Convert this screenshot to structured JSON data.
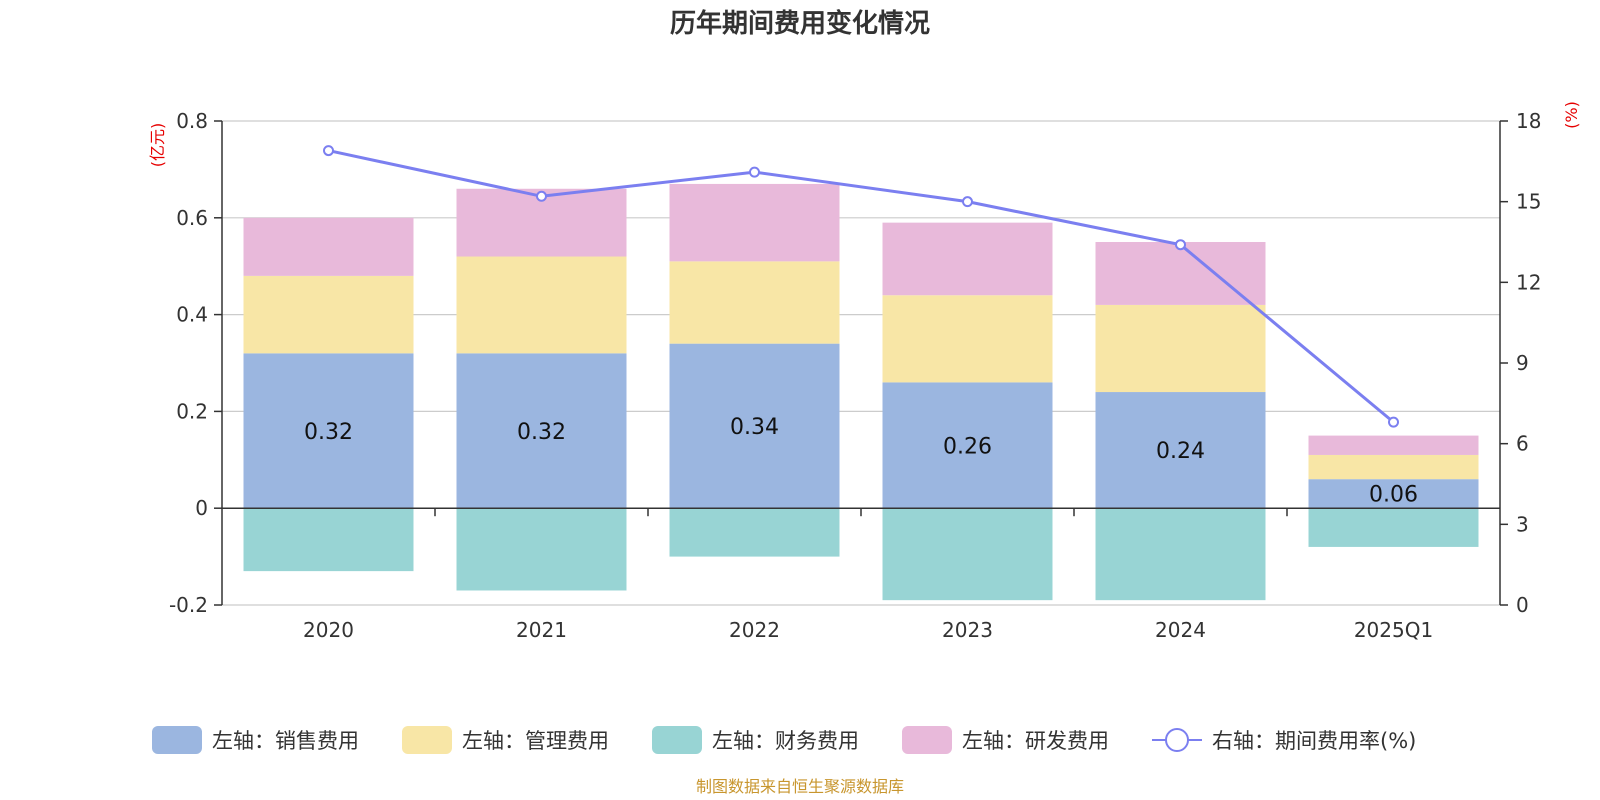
{
  "chart_data": {
    "type": "bar",
    "title": "历年期间费用变化情况",
    "categories": [
      "2020",
      "2021",
      "2022",
      "2023",
      "2024",
      "2025Q1"
    ],
    "left_axis": {
      "unit": "(亿元)",
      "range": [
        -0.2,
        0.8
      ],
      "ticks": [
        "-0.2",
        "0",
        "0.2",
        "0.4",
        "0.6",
        "0.8"
      ]
    },
    "right_axis": {
      "unit": "(%)",
      "range": [
        0,
        18
      ],
      "ticks": [
        "0",
        "3",
        "6",
        "9",
        "12",
        "15",
        "18"
      ]
    },
    "series": [
      {
        "name": "左轴：销售费用",
        "type": "bar",
        "axis": "left",
        "color": "#9bb6e0",
        "values": [
          0.32,
          0.32,
          0.34,
          0.26,
          0.24,
          0.06
        ],
        "labels": [
          "0.32",
          "0.32",
          "0.34",
          "0.26",
          "0.24",
          "0.06"
        ]
      },
      {
        "name": "左轴：管理费用",
        "type": "bar",
        "axis": "left",
        "color": "#f8e6a6",
        "values": [
          0.16,
          0.2,
          0.17,
          0.18,
          0.18,
          0.05
        ]
      },
      {
        "name": "左轴：财务费用",
        "type": "bar",
        "axis": "left",
        "color": "#98d4d4",
        "values": [
          -0.13,
          -0.17,
          -0.1,
          -0.19,
          -0.19,
          -0.08
        ]
      },
      {
        "name": "左轴：研发费用",
        "type": "bar",
        "axis": "left",
        "color": "#e8b9da",
        "values": [
          0.12,
          0.14,
          0.16,
          0.15,
          0.13,
          0.04
        ]
      },
      {
        "name": "右轴：期间费用率(%)",
        "type": "line",
        "axis": "right",
        "color": "#7b7ff0",
        "values": [
          16.9,
          15.2,
          16.1,
          15.0,
          13.4,
          6.8
        ]
      }
    ],
    "grid": true,
    "legend": "bottom"
  },
  "source": "制图数据来自恒生聚源数据库"
}
